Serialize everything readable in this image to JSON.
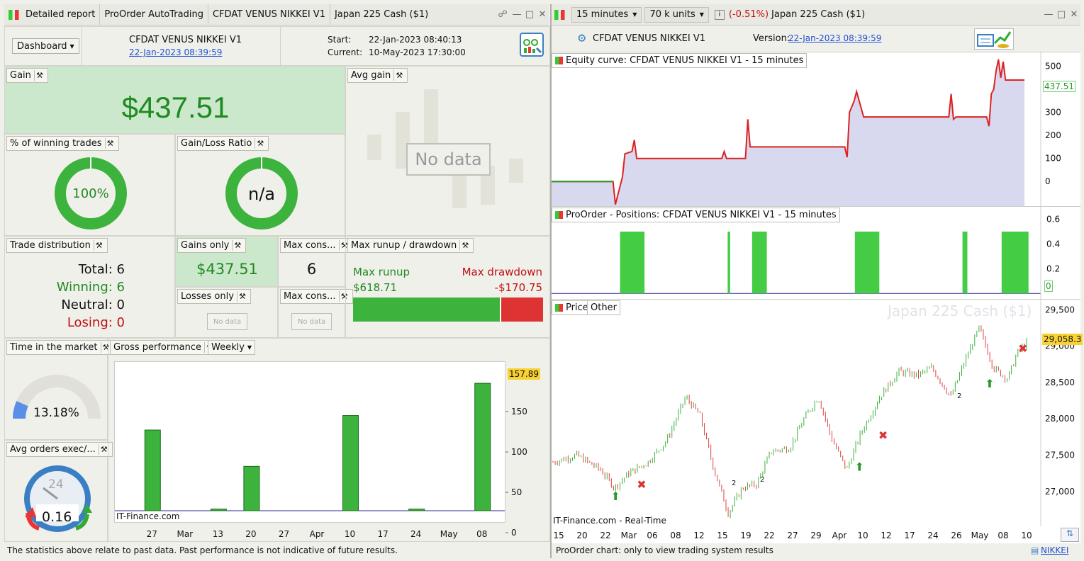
{
  "left_title": {
    "tabs": [
      "Detailed report",
      "ProOrder AutoTrading",
      "CFDAT VENUS NIKKEI V1",
      "Japan 225 Cash ($1)"
    ]
  },
  "dash": {
    "dropdown": "Dashboard",
    "system": "CFDAT VENUS NIKKEI V1",
    "date": "22-Jan-2023 08:39:59",
    "start_label": "Start:",
    "start": "22-Jan-2023 08:40:13",
    "current_label": "Current:",
    "current": "10-May-2023 17:30:00"
  },
  "gain": {
    "label": "Gain",
    "value": "$437.51"
  },
  "avg_gain": {
    "label": "Avg gain",
    "nodata": "No data"
  },
  "win_pct": {
    "label": "% of winning trades",
    "value": "100%"
  },
  "gl_ratio": {
    "label": "Gain/Loss Ratio",
    "value": "n/a"
  },
  "trade_dist": {
    "label": "Trade distribution",
    "total": "Total: 6",
    "winning": "Winning: 6",
    "neutral": "Neutral: 0",
    "losing": "Losing: 0"
  },
  "gains_only": {
    "label": "Gains only",
    "value": "$437.51"
  },
  "losses_only": {
    "label": "Losses only",
    "nodata": "No data"
  },
  "max_cons1": {
    "label": "Max cons...",
    "value": "6"
  },
  "max_cons2": {
    "label": "Max cons...",
    "nodata": "No data"
  },
  "runup": {
    "label": "Max runup / drawdown",
    "runup_label": "Max runup",
    "runup_value": "$618.71",
    "dd_label": "Max drawdown",
    "dd_value": "-$170.75",
    "runup_fraction": 0.78
  },
  "time_market": {
    "label": "Time in the market",
    "value": "13.18%",
    "fraction": 0.1318
  },
  "avg_orders": {
    "label": "Avg orders exec/...",
    "value": "0.16",
    "clock": "24"
  },
  "gross": {
    "label": "Gross performance",
    "period": "Weekly",
    "watermark": "IT-Finance.com",
    "last_label": "157.89"
  },
  "footer_left": "The statistics above relate to past data. Past performance is not indicative of future results.",
  "right_title": {
    "interval": "15 minutes",
    "units": "70 k units",
    "change": "(-0.51%)",
    "instrument": "Japan 225 Cash ($1)"
  },
  "right_header": {
    "system": "CFDAT VENUS NIKKEI V1",
    "version_label": "Version:",
    "version": "22-Jan-2023 08:39:59"
  },
  "equity": {
    "label": "Equity curve: CFDAT VENUS NIKKEI V1 - 15 minutes",
    "last": "437.51"
  },
  "positions": {
    "label": "ProOrder - Positions: CFDAT VENUS NIKKEI V1 - 15 minutes",
    "last": "0"
  },
  "price": {
    "tab1": "Price",
    "tab2": "Other",
    "watermark": "Japan 225 Cash ($1)",
    "last": "29,058.3",
    "source": "IT-Finance.com - Real-Time",
    "annot": [
      "2",
      "2",
      "2"
    ]
  },
  "footer_right": {
    "text": "ProOrder chart: only to view trading system results",
    "link": "NIKKEI"
  },
  "colors": {
    "green": "#3cb33c",
    "red": "#dd3333",
    "equity_fill": "#d8d8ee"
  },
  "chart_data": [
    {
      "type": "bar",
      "title": "Gross performance",
      "categories": [
        "Feb 27",
        "Mar 6",
        "Mar 13",
        "Mar 20",
        "Mar 27",
        "Apr 3",
        "Apr 10",
        "Apr 17",
        "Apr 24",
        "May 1",
        "May 8"
      ],
      "values": [
        100,
        0,
        2,
        55,
        0,
        0,
        118,
        0,
        2,
        0,
        157.89
      ],
      "x_tick_labels": [
        "27",
        "Mar",
        "13",
        "20",
        "27",
        "Apr",
        "10",
        "17",
        "24",
        "May",
        "08"
      ],
      "y_ticks": [
        0,
        50,
        100,
        150
      ],
      "ylim": [
        -10,
        165
      ]
    },
    {
      "type": "area",
      "title": "Equity curve: CFDAT VENUS NIKKEI V1 - 15 minutes",
      "y_ticks": [
        0,
        100,
        200,
        300,
        400,
        500
      ],
      "ylim": [
        -110,
        560
      ],
      "x": [
        0,
        0.13,
        0.135,
        0.15,
        0.155,
        0.17,
        0.175,
        0.18,
        0.36,
        0.365,
        0.37,
        0.41,
        0.415,
        0.42,
        0.43,
        0.435,
        0.62,
        0.625,
        0.63,
        0.64,
        0.645,
        0.66,
        0.665,
        0.84,
        0.845,
        0.85,
        0.855,
        0.86,
        0.92,
        0.925,
        0.93,
        0.935,
        0.94,
        0.945,
        0.95,
        0.955,
        0.96,
        1.0
      ],
      "values": [
        0,
        0,
        -100,
        20,
        120,
        130,
        180,
        100,
        100,
        130,
        100,
        100,
        270,
        150,
        150,
        150,
        150,
        105,
        300,
        350,
        390,
        280,
        280,
        280,
        380,
        270,
        280,
        280,
        280,
        240,
        380,
        400,
        480,
        530,
        450,
        520,
        440,
        440
      ]
    },
    {
      "type": "bar",
      "title": "ProOrder - Positions: CFDAT VENUS NIKKEI V1 - 15 minutes",
      "y_ticks": [
        0,
        0.2,
        0.4,
        0.6
      ],
      "ylim": [
        -0.05,
        0.7
      ],
      "spans": [
        [
          0.14,
          0.19
        ],
        [
          0.36,
          0.365
        ],
        [
          0.41,
          0.44
        ],
        [
          0.62,
          0.67
        ],
        [
          0.84,
          0.85
        ],
        [
          0.92,
          0.975
        ]
      ],
      "values": [
        0.5,
        0.5,
        0.5,
        0.5,
        0.5,
        0.5
      ]
    },
    {
      "type": "candlestick",
      "title": "Price",
      "y_ticks": [
        27000,
        27500,
        28000,
        28500,
        29000,
        29500
      ],
      "ylim": [
        26520,
        29640
      ],
      "x_tick_labels": [
        "15",
        "20",
        "22",
        "Mar",
        "06",
        "08",
        "12",
        "15",
        "19",
        "22",
        "27",
        "29",
        "Apr",
        "10",
        "12",
        "17",
        "24",
        "26",
        "May",
        "08",
        "10"
      ],
      "last": 29058.3,
      "path": [
        [
          0,
          27400
        ],
        [
          0.05,
          27500
        ],
        [
          0.1,
          27300
        ],
        [
          0.13,
          27050
        ],
        [
          0.16,
          27250
        ],
        [
          0.2,
          27400
        ],
        [
          0.24,
          27700
        ],
        [
          0.28,
          28300
        ],
        [
          0.31,
          28050
        ],
        [
          0.34,
          27300
        ],
        [
          0.37,
          26700
        ],
        [
          0.4,
          27050
        ],
        [
          0.43,
          27100
        ],
        [
          0.46,
          27550
        ],
        [
          0.5,
          27600
        ],
        [
          0.53,
          28000
        ],
        [
          0.56,
          28300
        ],
        [
          0.59,
          27700
        ],
        [
          0.62,
          27300
        ],
        [
          0.65,
          27800
        ],
        [
          0.69,
          28300
        ],
        [
          0.73,
          28650
        ],
        [
          0.77,
          28600
        ],
        [
          0.8,
          28700
        ],
        [
          0.84,
          28300
        ],
        [
          0.87,
          28800
        ],
        [
          0.9,
          29250
        ],
        [
          0.93,
          28700
        ],
        [
          0.96,
          28550
        ],
        [
          0.98,
          28900
        ],
        [
          1.0,
          29050
        ]
      ]
    }
  ]
}
